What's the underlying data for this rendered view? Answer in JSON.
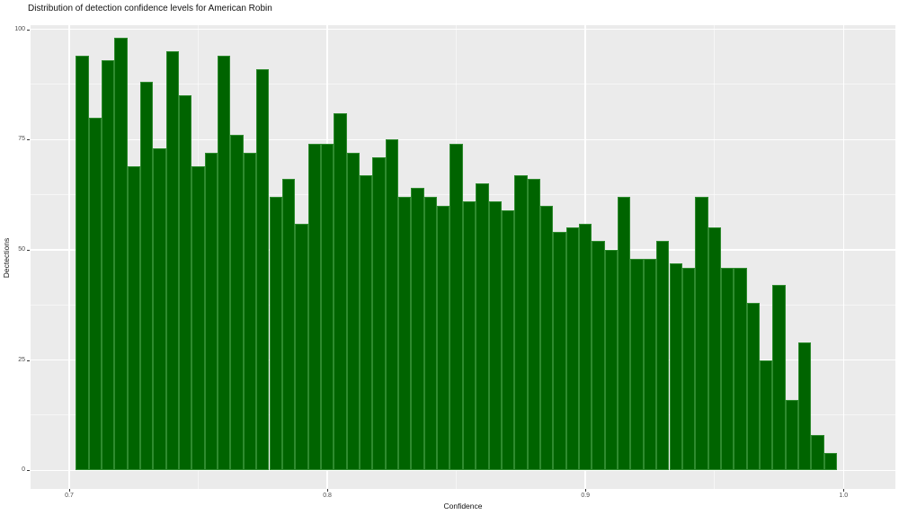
{
  "chart_data": {
    "type": "bar",
    "subtype": "histogram",
    "title": "Distribution of detection confidence levels for American Robin",
    "xlabel": "Confidence",
    "ylabel": "Dectections",
    "bin_start": 0.7025,
    "bin_width": 0.005,
    "bin_centers_note": "bins centered at 0.705 through 0.995 step 0.005",
    "values": [
      94,
      80,
      93,
      98,
      69,
      88,
      73,
      95,
      85,
      69,
      72,
      94,
      76,
      72,
      91,
      62,
      66,
      56,
      74,
      74,
      81,
      72,
      67,
      71,
      75,
      62,
      64,
      62,
      60,
      74,
      61,
      65,
      61,
      59,
      67,
      66,
      60,
      54,
      55,
      56,
      52,
      50,
      62,
      48,
      48,
      52,
      47,
      46,
      62,
      55,
      46,
      46,
      38,
      25,
      42,
      16,
      29,
      8,
      4
    ],
    "x_ticks": [
      0.7,
      0.8,
      0.9,
      1.0
    ],
    "x_tick_labels": [
      "0.7",
      "0.8",
      "0.9",
      "1.0"
    ],
    "y_ticks": [
      0,
      25,
      50,
      75,
      100
    ],
    "y_tick_labels": [
      "0",
      "25",
      "50",
      "75",
      "100"
    ],
    "xlim": [
      0.685,
      1.02
    ],
    "ylim": [
      -4.2,
      100.9
    ],
    "grid": "major-and-minor",
    "legend": "none",
    "colors": {
      "bar_fill": "#006400",
      "bar_border": "#2F8B2F",
      "panel_background": "#EBEBEB",
      "grid_color": "#FFFFFF",
      "tick_text": "#4D4D4D",
      "text": "#111111"
    }
  }
}
